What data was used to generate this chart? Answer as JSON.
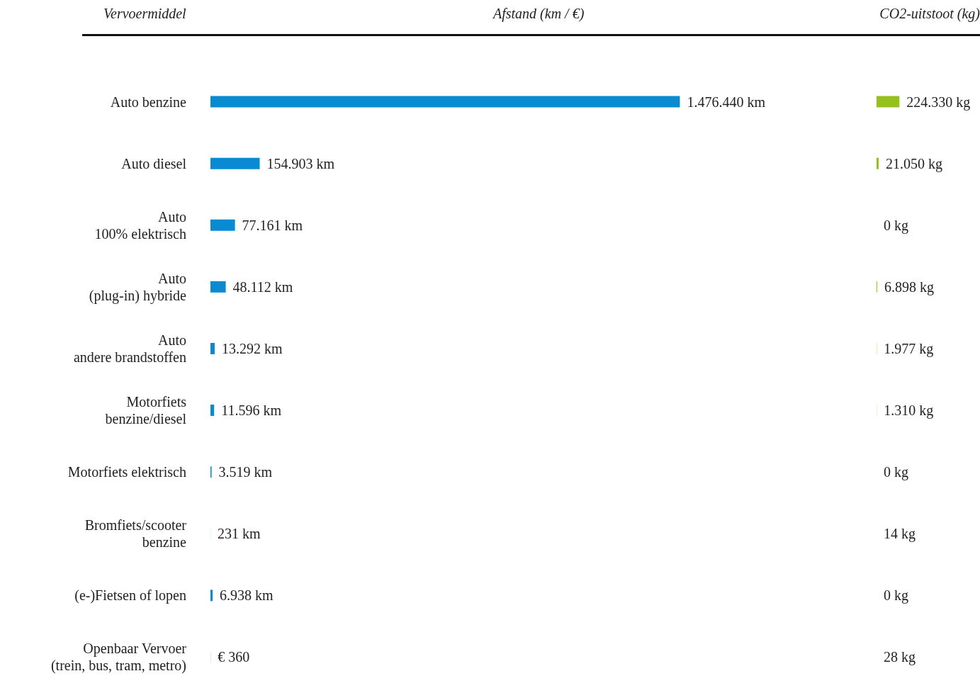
{
  "chart_data": [
    {
      "type": "bar",
      "orientation": "horizontal",
      "title": "Afstand (km / €)",
      "ylabel": "Vervoermiddel",
      "categories": [
        "Auto benzine",
        "Auto diesel",
        "Auto\n100% elektrisch",
        "Auto\n(plug-in) hybride",
        "Auto\nandere brandstoffen",
        "Motorfiets\nbenzine/diesel",
        "Motorfiets elektrisch",
        "Bromfiets/scooter\nbenzine",
        "(e-)Fietsen of lopen",
        "Openbaar Vervoer\n(trein, bus, tram, metro)"
      ],
      "values": [
        1476440,
        154903,
        77161,
        48112,
        13292,
        11596,
        3519,
        231,
        6938,
        360
      ],
      "value_labels": [
        "1.476.440 km",
        "154.903 km",
        "77.161 km",
        "48.112 km",
        "13.292 km",
        "11.596 km",
        "3.519 km",
        "231 km",
        "6.938 km",
        "€ 360"
      ],
      "color": "#0a8ad0"
    },
    {
      "type": "bar",
      "orientation": "horizontal",
      "title": "CO2-uitstoot (kg)",
      "categories": [
        null,
        null,
        null,
        null,
        null,
        null,
        null,
        null,
        null,
        null
      ],
      "values": [
        224330,
        21050,
        0,
        6898,
        1977,
        1310,
        0,
        14,
        0,
        28
      ],
      "value_labels": [
        "224.330 kg",
        "21.050 kg",
        "0 kg",
        "6.898 kg",
        "1.977 kg",
        "1.310 kg",
        "0 kg",
        "14 kg",
        "0 kg",
        "28 kg"
      ],
      "color": "#95c11f"
    }
  ]
}
